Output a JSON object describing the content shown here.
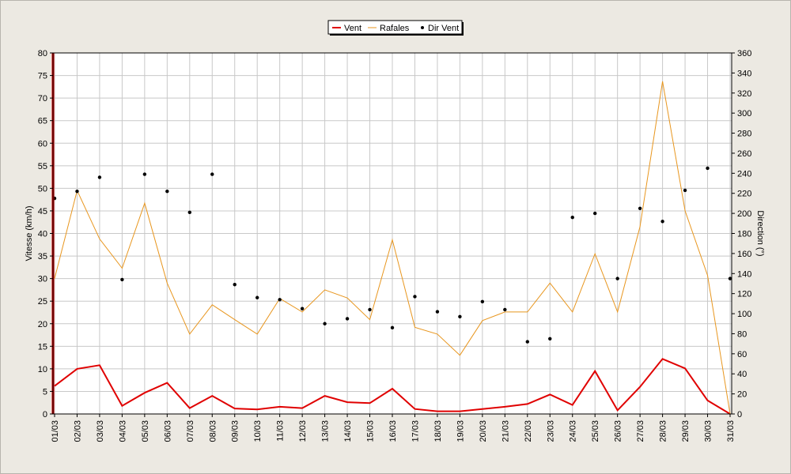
{
  "chart_data": {
    "type": "line",
    "categories": [
      "01/03",
      "02/03",
      "03/03",
      "04/03",
      "05/03",
      "06/03",
      "07/03",
      "08/03",
      "09/03",
      "10/03",
      "11/03",
      "12/03",
      "13/03",
      "14/03",
      "15/03",
      "16/03",
      "17/03",
      "18/03",
      "19/03",
      "20/03",
      "21/03",
      "22/03",
      "23/03",
      "24/03",
      "25/03",
      "26/03",
      "27/03",
      "28/03",
      "29/03",
      "30/03",
      "31/03"
    ],
    "ylabel": "Vitesse (km/h)",
    "y2label": "Direction (°)",
    "ylim": [
      0,
      80
    ],
    "y2lim": [
      0,
      360
    ],
    "yticks": [
      0,
      5,
      10,
      15,
      20,
      25,
      30,
      35,
      40,
      45,
      50,
      55,
      60,
      65,
      70,
      75,
      80
    ],
    "y2ticks": [
      0,
      20,
      40,
      60,
      80,
      100,
      120,
      140,
      160,
      180,
      200,
      220,
      240,
      260,
      280,
      300,
      320,
      340,
      360
    ],
    "grid": true,
    "legend_position": "top-center",
    "series": [
      {
        "name": "Vent",
        "type": "line",
        "axis": "left",
        "color": "#e00000",
        "values": [
          6.2,
          10,
          10.8,
          1.8,
          4.7,
          6.9,
          1.3,
          4,
          1.2,
          1,
          1.6,
          1.3,
          4,
          2.6,
          2.4,
          5.6,
          1.1,
          0.6,
          0.6,
          1.1,
          1.6,
          2.2,
          4.3,
          2,
          9.5,
          0.8,
          6,
          12.2,
          10.1,
          3,
          0
        ]
      },
      {
        "name": "Rafales",
        "type": "line",
        "axis": "left",
        "color": "#e8961e",
        "values": [
          30,
          49.5,
          38.8,
          32.3,
          46.7,
          29,
          17.7,
          24.2,
          20.9,
          17.7,
          25.6,
          22.6,
          27.5,
          25.7,
          20.9,
          38.6,
          19.2,
          17.7,
          13,
          20.7,
          22.6,
          22.6,
          29,
          22.6,
          35.5,
          22.6,
          41.5,
          73.7,
          45,
          30.7,
          0
        ]
      },
      {
        "name": "Dir Vent",
        "type": "scatter",
        "axis": "right",
        "color": "#000000",
        "values": [
          215,
          222,
          236,
          134,
          239,
          222,
          201,
          239,
          129,
          116,
          114,
          105,
          90,
          95,
          104,
          86,
          117,
          102,
          97,
          112,
          104,
          72,
          75,
          196,
          200,
          135,
          205,
          192,
          223,
          245,
          135
        ]
      }
    ]
  }
}
